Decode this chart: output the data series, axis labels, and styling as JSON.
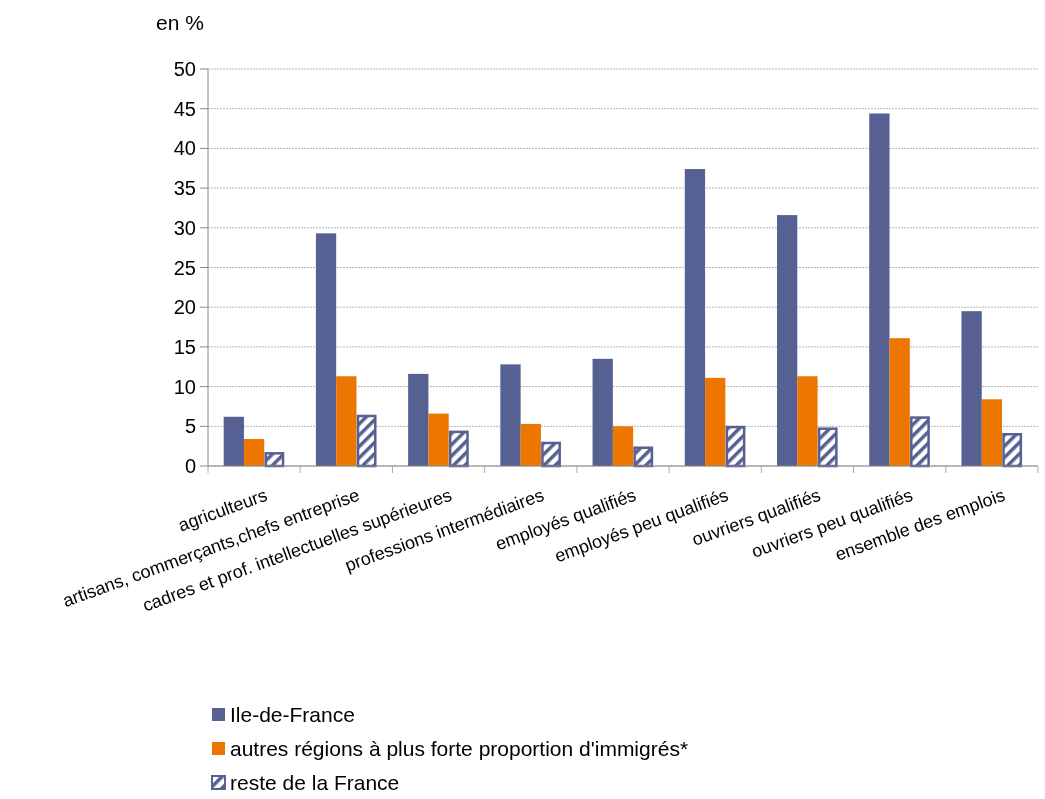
{
  "chart_data": {
    "type": "bar",
    "ylabel": "en %",
    "categories": [
      "agriculteurs",
      "artisans, commerçants,chefs entreprise",
      "cadres et prof. intellectuelles supérieures",
      "professions intermédiaires",
      "employés qualifiés",
      "employés peu qualifiés",
      "ouvriers qualifiés",
      "ouvriers peu qualifiés",
      "ensemble des emplois"
    ],
    "series": [
      {
        "name": "Ile-de-France",
        "color": "#566093",
        "values": [
          6.2,
          29.3,
          11.6,
          12.8,
          13.5,
          37.4,
          31.6,
          44.4,
          19.5
        ]
      },
      {
        "name": "autres régions à plus forte proportion d'immigrés*",
        "color": "#ed7600",
        "values": [
          3.4,
          11.3,
          6.6,
          5.3,
          5.0,
          11.1,
          11.3,
          16.1,
          8.4
        ]
      },
      {
        "name": "reste de la France",
        "color": "#566093",
        "values": [
          1.6,
          6.3,
          4.3,
          2.9,
          2.3,
          4.9,
          4.7,
          6.1,
          4.0
        ]
      }
    ],
    "ylim": [
      0,
      50
    ],
    "yticks": [
      0,
      5,
      10,
      15,
      20,
      25,
      30,
      35,
      40,
      45,
      50
    ],
    "grid": "y",
    "legend": "bottom"
  }
}
